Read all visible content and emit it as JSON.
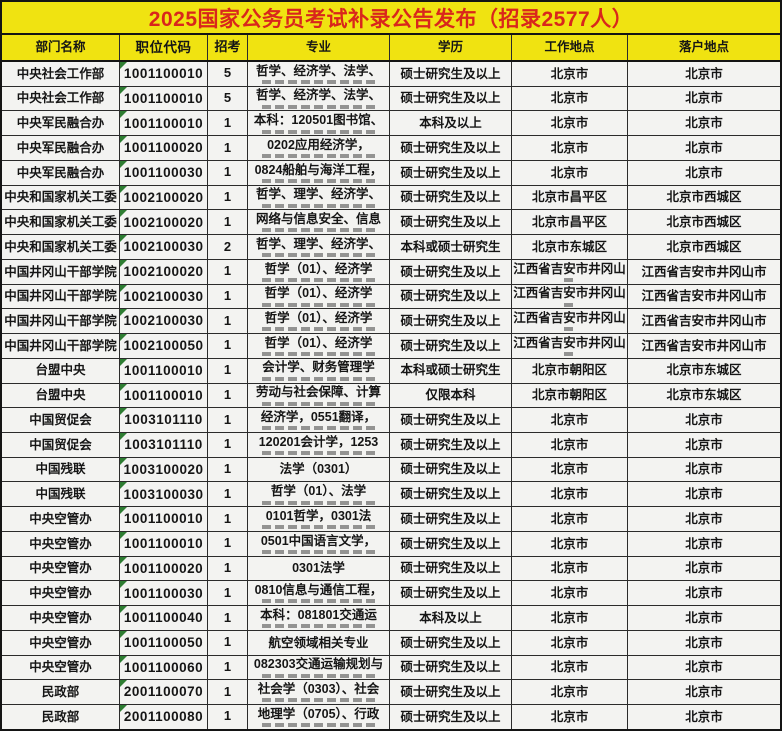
{
  "title": "2025国家公务员考试补录公告发布（招录2577人）",
  "colors": {
    "title_bg": "#f0e311",
    "title_text": "#d9261c",
    "row_bg": "#f3f3f1",
    "grid": "#2b2b2b",
    "triangle_indicator": "#2e7d32"
  },
  "table": {
    "columns": [
      {
        "key": "dept",
        "label": "部门名称"
      },
      {
        "key": "code",
        "label": "职位代码"
      },
      {
        "key": "count",
        "label": "招考"
      },
      {
        "key": "major",
        "label": "专业"
      },
      {
        "key": "degree",
        "label": "学历"
      },
      {
        "key": "work",
        "label": "工作地点"
      },
      {
        "key": "settle",
        "label": "落户地点"
      }
    ],
    "rows": [
      {
        "dept": "中央社会工作部",
        "code": "1001100010",
        "count": "5",
        "major": "哲学、经济学、法学、",
        "majorClip": true,
        "degree": "硕士研究生及以上",
        "work": "北京市",
        "workClip": false,
        "settle": "北京市"
      },
      {
        "dept": "中央社会工作部",
        "code": "1001100010",
        "count": "5",
        "major": "哲学、经济学、法学、",
        "majorClip": true,
        "degree": "硕士研究生及以上",
        "work": "北京市",
        "workClip": false,
        "settle": "北京市"
      },
      {
        "dept": "中央军民融合办",
        "code": "1001100010",
        "count": "1",
        "major": "本科：120501图书馆、",
        "majorClip": true,
        "degree": "本科及以上",
        "work": "北京市",
        "workClip": false,
        "settle": "北京市"
      },
      {
        "dept": "中央军民融合办",
        "code": "1001100020",
        "count": "1",
        "major": "0202应用经济学，",
        "majorClip": true,
        "degree": "硕士研究生及以上",
        "work": "北京市",
        "workClip": false,
        "settle": "北京市"
      },
      {
        "dept": "中央军民融合办",
        "code": "1001100030",
        "count": "1",
        "major": "0824船舶与海洋工程，",
        "majorClip": true,
        "degree": "硕士研究生及以上",
        "work": "北京市",
        "workClip": false,
        "settle": "北京市"
      },
      {
        "dept": "中央和国家机关工委",
        "code": "1002100020",
        "count": "1",
        "major": "哲学、理学、经济学、",
        "majorClip": true,
        "degree": "硕士研究生及以上",
        "work": "北京市昌平区",
        "workClip": false,
        "settle": "北京市西城区"
      },
      {
        "dept": "中央和国家机关工委",
        "code": "1002100020",
        "count": "1",
        "major": "网络与信息安全、信息",
        "majorClip": true,
        "degree": "硕士研究生及以上",
        "work": "北京市昌平区",
        "workClip": false,
        "settle": "北京市西城区"
      },
      {
        "dept": "中央和国家机关工委",
        "code": "1002100030",
        "count": "2",
        "major": "哲学、理学、经济学、",
        "majorClip": true,
        "degree": "本科或硕士研究生",
        "work": "北京市东城区",
        "workClip": false,
        "settle": "北京市西城区"
      },
      {
        "dept": "中国井冈山干部学院",
        "code": "1002100020",
        "count": "1",
        "major": "哲学（01）、经济学",
        "majorClip": true,
        "degree": "硕士研究生及以上",
        "work": "江西省吉安市井冈山",
        "workClip": true,
        "settle": "江西省吉安市井冈山市"
      },
      {
        "dept": "中国井冈山干部学院",
        "code": "1002100030",
        "count": "1",
        "major": "哲学（01）、经济学",
        "majorClip": true,
        "degree": "硕士研究生及以上",
        "work": "江西省吉安市井冈山",
        "workClip": true,
        "settle": "江西省吉安市井冈山市"
      },
      {
        "dept": "中国井冈山干部学院",
        "code": "1002100030",
        "count": "1",
        "major": "哲学（01）、经济学",
        "majorClip": true,
        "degree": "硕士研究生及以上",
        "work": "江西省吉安市井冈山",
        "workClip": true,
        "settle": "江西省吉安市井冈山市"
      },
      {
        "dept": "中国井冈山干部学院",
        "code": "1002100050",
        "count": "1",
        "major": "哲学（01）、经济学",
        "majorClip": true,
        "degree": "硕士研究生及以上",
        "work": "江西省吉安市井冈山",
        "workClip": true,
        "settle": "江西省吉安市井冈山市"
      },
      {
        "dept": "台盟中央",
        "code": "1001100010",
        "count": "1",
        "major": "会计学、财务管理学",
        "majorClip": true,
        "degree": "本科或硕士研究生",
        "work": "北京市朝阳区",
        "workClip": false,
        "settle": "北京市东城区"
      },
      {
        "dept": "台盟中央",
        "code": "1001100010",
        "count": "1",
        "major": "劳动与社会保障、计算",
        "majorClip": true,
        "degree": "仅限本科",
        "work": "北京市朝阳区",
        "workClip": false,
        "settle": "北京市东城区"
      },
      {
        "dept": "中国贸促会",
        "code": "1003101110",
        "count": "1",
        "major": "经济学，0551翻译，",
        "majorClip": true,
        "degree": "硕士研究生及以上",
        "work": "北京市",
        "workClip": false,
        "settle": "北京市"
      },
      {
        "dept": "中国贸促会",
        "code": "1003101110",
        "count": "1",
        "major": "120201会计学，1253",
        "majorClip": true,
        "degree": "硕士研究生及以上",
        "work": "北京市",
        "workClip": false,
        "settle": "北京市"
      },
      {
        "dept": "中国残联",
        "code": "1003100020",
        "count": "1",
        "major": "法学（0301）",
        "majorClip": false,
        "degree": "硕士研究生及以上",
        "work": "北京市",
        "workClip": false,
        "settle": "北京市"
      },
      {
        "dept": "中国残联",
        "code": "1003100030",
        "count": "1",
        "major": "哲学（01）、法学",
        "majorClip": true,
        "degree": "硕士研究生及以上",
        "work": "北京市",
        "workClip": false,
        "settle": "北京市"
      },
      {
        "dept": "中央空管办",
        "code": "1001100010",
        "count": "1",
        "major": "0101哲学，0301法",
        "majorClip": true,
        "degree": "硕士研究生及以上",
        "work": "北京市",
        "workClip": false,
        "settle": "北京市"
      },
      {
        "dept": "中央空管办",
        "code": "1001100010",
        "count": "1",
        "major": "0501中国语言文学，",
        "majorClip": true,
        "degree": "硕士研究生及以上",
        "work": "北京市",
        "workClip": false,
        "settle": "北京市"
      },
      {
        "dept": "中央空管办",
        "code": "1001100020",
        "count": "1",
        "major": "0301法学",
        "majorClip": false,
        "degree": "硕士研究生及以上",
        "work": "北京市",
        "workClip": false,
        "settle": "北京市"
      },
      {
        "dept": "中央空管办",
        "code": "1001100030",
        "count": "1",
        "major": "0810信息与通信工程，",
        "majorClip": true,
        "degree": "硕士研究生及以上",
        "work": "北京市",
        "workClip": false,
        "settle": "北京市"
      },
      {
        "dept": "中央空管办",
        "code": "1001100040",
        "count": "1",
        "major": "本科：081801交通运",
        "majorClip": true,
        "degree": "本科及以上",
        "work": "北京市",
        "workClip": false,
        "settle": "北京市"
      },
      {
        "dept": "中央空管办",
        "code": "1001100050",
        "count": "1",
        "major": "航空领域相关专业",
        "majorClip": false,
        "degree": "硕士研究生及以上",
        "work": "北京市",
        "workClip": false,
        "settle": "北京市"
      },
      {
        "dept": "中央空管办",
        "code": "1001100060",
        "count": "1",
        "major": "082303交通运输规划与",
        "majorClip": true,
        "degree": "硕士研究生及以上",
        "work": "北京市",
        "workClip": false,
        "settle": "北京市"
      },
      {
        "dept": "民政部",
        "code": "2001100070",
        "count": "1",
        "major": "社会学（0303）、社会",
        "majorClip": true,
        "degree": "硕士研究生及以上",
        "work": "北京市",
        "workClip": false,
        "settle": "北京市"
      },
      {
        "dept": "民政部",
        "code": "2001100080",
        "count": "1",
        "major": "地理学（0705）、行政",
        "majorClip": true,
        "degree": "硕士研究生及以上",
        "work": "北京市",
        "workClip": false,
        "settle": "北京市"
      }
    ]
  }
}
